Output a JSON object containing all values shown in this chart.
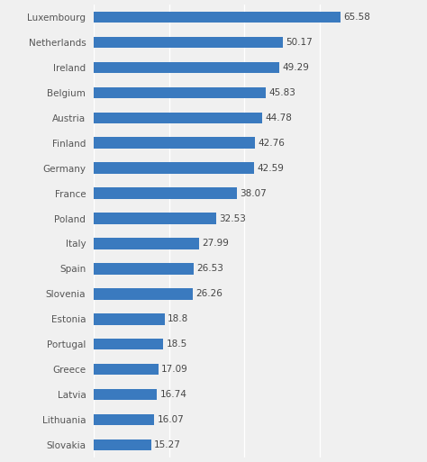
{
  "categories": [
    "Luxembourg",
    "Netherlands",
    "Ireland",
    "Belgium",
    "Austria",
    "Finland",
    "Germany",
    "France",
    "Poland",
    "Italy",
    "Spain",
    "Slovenia",
    "Estonia",
    "Portugal",
    "Greece",
    "Latvia",
    "Lithuania",
    "Slovakia"
  ],
  "values": [
    65.58,
    50.17,
    49.29,
    45.83,
    44.78,
    42.76,
    42.59,
    38.07,
    32.53,
    27.99,
    26.53,
    26.26,
    18.8,
    18.5,
    17.09,
    16.74,
    16.07,
    15.27
  ],
  "bar_color": "#3a7abf",
  "background_color": "#f0f0f0",
  "grid_color": "#ffffff",
  "text_color": "#555555",
  "label_color": "#444444",
  "value_fontsize": 7.5,
  "label_fontsize": 7.5,
  "bar_height": 0.45,
  "xlim": [
    0,
    75
  ]
}
